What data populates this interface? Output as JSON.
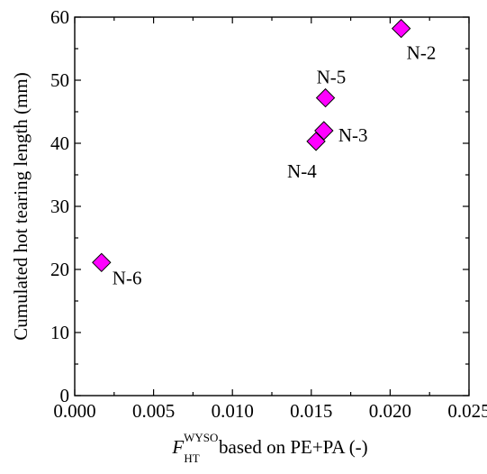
{
  "chart_data": {
    "type": "scatter",
    "xlabel": {
      "symbol": "F",
      "subscript": "HT",
      "superscript": "WYSO",
      "suffix": " based on PE+PA (-)"
    },
    "ylabel": "Cumulated hot tearing length (mm)",
    "xlim": [
      0,
      0.025
    ],
    "ylim": [
      0,
      60
    ],
    "xticks": [
      0.0,
      0.005,
      0.01,
      0.015,
      0.02,
      0.025
    ],
    "xtick_labels": [
      "0.000",
      "0.005",
      "0.010",
      "0.015",
      "0.020",
      "0.025"
    ],
    "yticks": [
      0,
      10,
      20,
      30,
      40,
      50,
      60
    ],
    "ytick_labels": [
      "0",
      "10",
      "20",
      "30",
      "40",
      "50",
      "60"
    ],
    "grid": false,
    "marker": {
      "shape": "diamond",
      "fill": "#ff00ff",
      "stroke": "#000000"
    },
    "points": [
      {
        "label": "N-2",
        "x": 0.0207,
        "y": 58.2,
        "label_pos": "below-right"
      },
      {
        "label": "N-5",
        "x": 0.0159,
        "y": 47.2,
        "label_pos": "above"
      },
      {
        "label": "N-3",
        "x": 0.0158,
        "y": 42.0,
        "label_pos": "right"
      },
      {
        "label": "N-4",
        "x": 0.0153,
        "y": 40.3,
        "label_pos": "below-left"
      },
      {
        "label": "N-6",
        "x": 0.0017,
        "y": 21.1,
        "label_pos": "right-below"
      }
    ]
  }
}
